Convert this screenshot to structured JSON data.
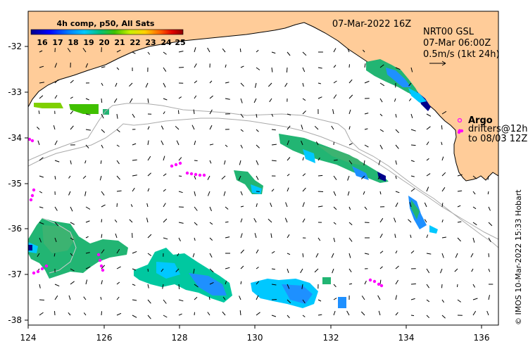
{
  "chart_data": {
    "type": "map",
    "x_ticks": [
      "124",
      "126",
      "128",
      "130",
      "132",
      "134",
      "136"
    ],
    "y_ticks": [
      "-32",
      "-33",
      "-34",
      "-35",
      "-36",
      "-37",
      "-38"
    ],
    "xlim": [
      124,
      136.5
    ],
    "ylim": [
      -38.15,
      -31.3
    ],
    "date_label": "07-Mar-2022 16Z",
    "colorbar": {
      "title": "4h comp, p50, All Sats",
      "ticks": [
        "16",
        "17",
        "18",
        "19",
        "20",
        "21",
        "22",
        "23",
        "24",
        "25"
      ],
      "range": [
        16,
        25
      ]
    },
    "current_legend": {
      "line1": "NRT00 GSL",
      "line2": "07-Mar 06:00Z",
      "line3": "0.5m/s (1kt 24h)"
    },
    "argo": {
      "title": "Argo",
      "line2": "drifters@12h",
      "line3": "to 08/03 12Z"
    },
    "credit": "© IMOS 10-Mar-2022 15:33 Hobart",
    "colors": {
      "land": "#FFCC99",
      "ocean": "#FFFFFF",
      "argo": "#FF00FF",
      "colorbar_low": "#00008B",
      "colorbar_high": "#8B0000"
    }
  }
}
